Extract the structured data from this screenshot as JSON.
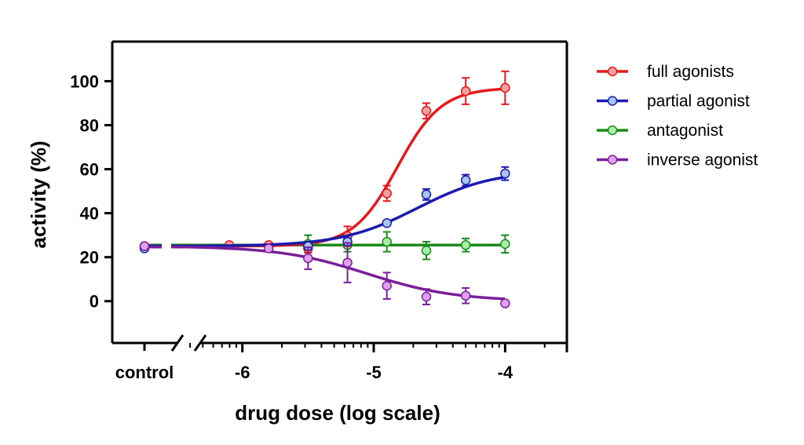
{
  "chart_data": {
    "type": "line",
    "title": "",
    "xlabel": "drug dose (log scale)",
    "ylabel": "activity (%)",
    "x_scale": "log",
    "xlim": [
      -6.99,
      -3.53
    ],
    "ylim": [
      -19,
      118
    ],
    "x_ticks": [
      {
        "value": -6,
        "label": "-6"
      },
      {
        "value": -5,
        "label": "-5"
      },
      {
        "value": -4,
        "label": "-4"
      }
    ],
    "x_control_label": "control",
    "axis_break": true,
    "y_ticks": [
      0,
      20,
      40,
      60,
      80,
      100
    ],
    "grid": false,
    "legend_position": "right",
    "series": [
      {
        "name": "full agonists",
        "color": "#e41a1c",
        "fill": "#f4a0a0",
        "control": {
          "y": 25,
          "err": 0
        },
        "points": [
          {
            "x": -6.1,
            "y": 25.5,
            "err": 0
          },
          {
            "x": -5.8,
            "y": 25.5,
            "err": 0
          },
          {
            "x": -5.5,
            "y": 24,
            "err": 2
          },
          {
            "x": -5.2,
            "y": 29.5,
            "err": 4.5
          },
          {
            "x": -4.9,
            "y": 49,
            "err": 3.5
          },
          {
            "x": -4.6,
            "y": 86.5,
            "err": 3.5
          },
          {
            "x": -4.3,
            "y": 95.5,
            "err": 6
          },
          {
            "x": -4.0,
            "y": 97,
            "err": 7.5
          }
        ],
        "fit": {
          "bottom": 25,
          "top": 97,
          "ec50": -4.82,
          "hill": 2.6
        }
      },
      {
        "name": "partial agonist",
        "color": "#1a1ab0",
        "fill": "#a8c4f0",
        "control": {
          "y": 24,
          "err": 0
        },
        "points": [
          {
            "x": -5.5,
            "y": 25,
            "err": 1.5
          },
          {
            "x": -5.2,
            "y": 27,
            "err": 1.5
          },
          {
            "x": -4.9,
            "y": 35.5,
            "err": 0
          },
          {
            "x": -4.6,
            "y": 48.5,
            "err": 2.5
          },
          {
            "x": -4.3,
            "y": 55,
            "err": 2.5
          },
          {
            "x": -4.0,
            "y": 58,
            "err": 3
          }
        ],
        "fit": {
          "bottom": 25,
          "top": 59.5,
          "ec50": -4.67,
          "hill": 1.5
        }
      },
      {
        "name": "antagonist",
        "color": "#1a8a1a",
        "fill": "#a8f0a8",
        "control": {
          "y": 25,
          "err": 0
        },
        "points": [
          {
            "x": -5.5,
            "y": 26,
            "err": 4
          },
          {
            "x": -5.2,
            "y": 25.5,
            "err": 3
          },
          {
            "x": -4.9,
            "y": 27,
            "err": 4.5
          },
          {
            "x": -4.6,
            "y": 23,
            "err": 4
          },
          {
            "x": -4.3,
            "y": 25.5,
            "err": 3
          },
          {
            "x": -4.0,
            "y": 26,
            "err": 4
          }
        ],
        "fit": {
          "bottom": 25.5,
          "top": 25.5,
          "ec50": -5,
          "hill": 1
        }
      },
      {
        "name": "inverse agonist",
        "color": "#7a1f9a",
        "fill": "#e0a0f0",
        "control": {
          "y": 25,
          "err": 0
        },
        "points": [
          {
            "x": -5.8,
            "y": 24,
            "err": 0
          },
          {
            "x": -5.5,
            "y": 19.5,
            "err": 5
          },
          {
            "x": -5.2,
            "y": 17.5,
            "err": 9
          },
          {
            "x": -4.9,
            "y": 7,
            "err": 6
          },
          {
            "x": -4.6,
            "y": 2,
            "err": 3.5
          },
          {
            "x": -4.3,
            "y": 2.5,
            "err": 3.5
          },
          {
            "x": -4.0,
            "y": -1,
            "err": 0
          }
        ],
        "fit": {
          "bottom": 25,
          "top": 0,
          "ec50": -5.05,
          "hill": 1.3
        }
      }
    ]
  }
}
